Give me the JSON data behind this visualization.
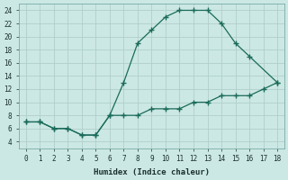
{
  "xlabel": "Humidex (Indice chaleur)",
  "line1_x": [
    0,
    1,
    2,
    3,
    4,
    5,
    6,
    7,
    8,
    9,
    10,
    11,
    12,
    13,
    14,
    15,
    16,
    18
  ],
  "line1_y": [
    7,
    7,
    6,
    6,
    5,
    5,
    8,
    13,
    19,
    21,
    23,
    24,
    24,
    24,
    22,
    19,
    17,
    13
  ],
  "line2_x": [
    0,
    1,
    2,
    3,
    4,
    5,
    6,
    7,
    8,
    9,
    10,
    11,
    12,
    13,
    14,
    15,
    16,
    17,
    18
  ],
  "line2_y": [
    7,
    7,
    6,
    6,
    5,
    5,
    8,
    8,
    8,
    9,
    9,
    9,
    10,
    10,
    11,
    11,
    11,
    12,
    13
  ],
  "line_color": "#1a6b5a",
  "bg_color": "#cce8e4",
  "grid_color": "#b0ceca",
  "xlim": [
    -0.5,
    18.5
  ],
  "ylim": [
    3,
    25
  ],
  "yticks": [
    4,
    6,
    8,
    10,
    12,
    14,
    16,
    18,
    20,
    22,
    24
  ],
  "xticks": [
    0,
    1,
    2,
    3,
    4,
    5,
    6,
    7,
    8,
    9,
    10,
    11,
    12,
    13,
    14,
    15,
    16,
    17,
    18
  ],
  "tick_fontsize": 5.5,
  "xlabel_fontsize": 6.5
}
